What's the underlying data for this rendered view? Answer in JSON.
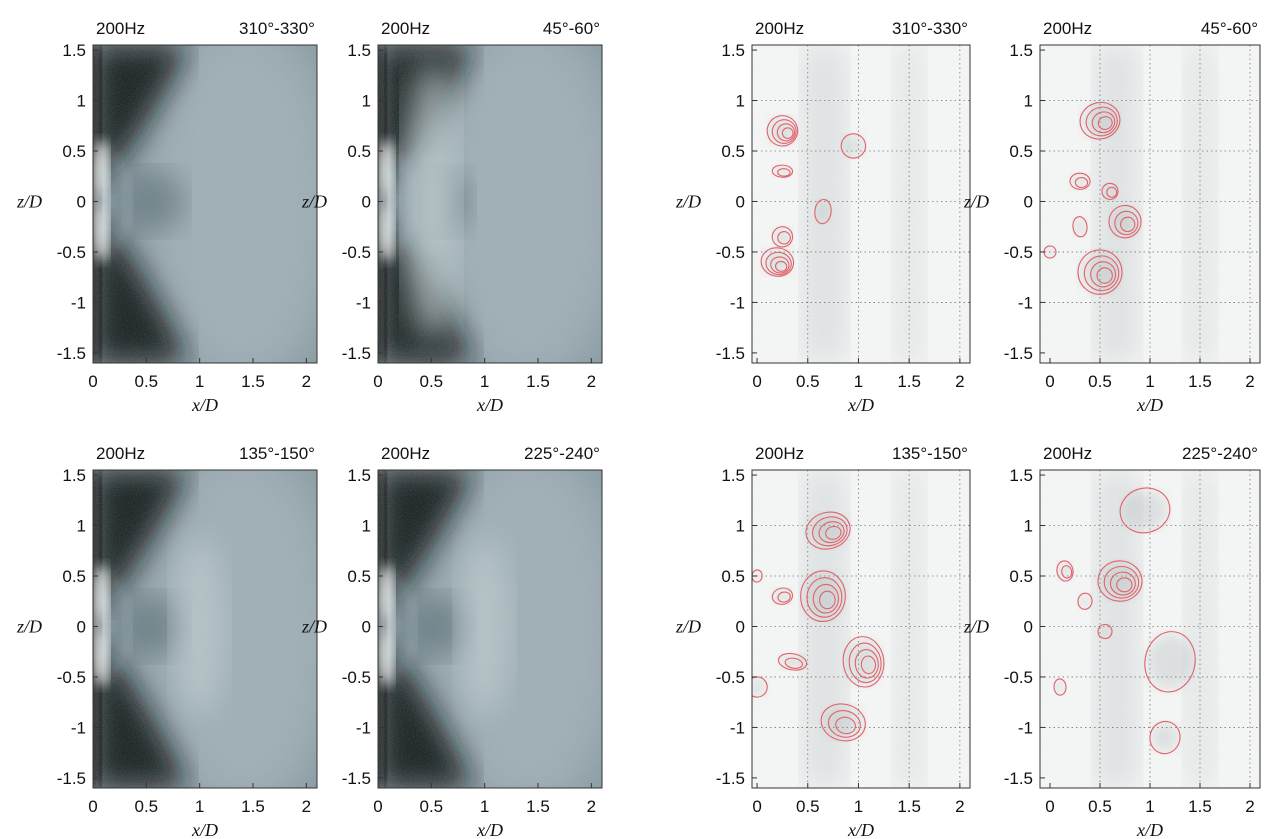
{
  "chart_data": [
    {
      "type": "heatmap",
      "style": "intensity",
      "freq": "200Hz",
      "phase": "310°-330°",
      "xlabel": "x/D",
      "ylabel": "z/D",
      "xlim": [
        0,
        2.1
      ],
      "ylim": [
        -1.6,
        1.55
      ],
      "xticks": [
        "0",
        "0.5",
        "1",
        "1.5",
        "2"
      ],
      "yticks": [
        "1.5",
        "1",
        "0.5",
        "0",
        "-0.5",
        "-1",
        "-1.5"
      ],
      "grid": false,
      "bright_features": [
        {
          "x": 0.08,
          "z": 0.3,
          "label": ""
        },
        {
          "x": 0.08,
          "z": -0.28,
          "label": ""
        }
      ]
    },
    {
      "type": "heatmap",
      "style": "intensity",
      "freq": "200Hz",
      "phase": "45°-60°",
      "xlabel": "x/D",
      "ylabel": "z/D",
      "xlim": [
        0,
        2.1
      ],
      "ylim": [
        -1.6,
        1.55
      ],
      "xticks": [
        "0",
        "0.5",
        "1",
        "1.5",
        "2"
      ],
      "yticks": [
        "1.5",
        "1",
        "0.5",
        "0",
        "-0.5",
        "-1",
        "-1.5"
      ],
      "grid": false,
      "bright_features": [
        {
          "x": 0.08,
          "z": 0.3,
          "label": ""
        },
        {
          "x": 0.08,
          "z": -0.28,
          "label": ""
        },
        {
          "x": 0.5,
          "z": 0.5,
          "label": ""
        },
        {
          "x": 0.5,
          "z": -0.5,
          "label": ""
        }
      ]
    },
    {
      "type": "heatmap",
      "style": "contour",
      "freq": "200Hz",
      "phase": "310°-330°",
      "xlabel": "x/D",
      "ylabel": "z/D",
      "xlim": [
        -0.05,
        2.1
      ],
      "ylim": [
        -1.6,
        1.55
      ],
      "xticks": [
        "0",
        "0.5",
        "1",
        "1.5",
        "2"
      ],
      "yticks": [
        "1.5",
        "1",
        "0.5",
        "0",
        "-0.5",
        "-1",
        "-1.5"
      ],
      "grid": true,
      "contours": [
        {
          "x": 0.25,
          "z": 0.7,
          "rx": 0.15,
          "rz": 0.15,
          "levels": 4
        },
        {
          "x": 0.25,
          "z": 0.3,
          "rx": 0.1,
          "rz": 0.06,
          "levels": 2
        },
        {
          "x": 0.95,
          "z": 0.55,
          "rx": 0.12,
          "rz": 0.12,
          "levels": 1
        },
        {
          "x": 0.65,
          "z": -0.1,
          "rx": 0.08,
          "rz": 0.12,
          "levels": 1
        },
        {
          "x": 0.25,
          "z": -0.35,
          "rx": 0.1,
          "rz": 0.1,
          "levels": 2
        },
        {
          "x": 0.2,
          "z": -0.6,
          "rx": 0.16,
          "rz": 0.14,
          "levels": 4
        }
      ]
    },
    {
      "type": "heatmap",
      "style": "contour",
      "freq": "200Hz",
      "phase": "45°-60°",
      "xlabel": "x/D",
      "ylabel": "z/D",
      "xlim": [
        -0.1,
        2.1
      ],
      "ylim": [
        -1.6,
        1.55
      ],
      "xticks": [
        "0",
        "0.5",
        "1",
        "1.5",
        "2"
      ],
      "yticks": [
        "1.5",
        "1",
        "0.5",
        "0",
        "-0.5",
        "-1",
        "-1.5"
      ],
      "grid": true,
      "contours": [
        {
          "x": 0.5,
          "z": 0.8,
          "rx": 0.2,
          "rz": 0.18,
          "levels": 4
        },
        {
          "x": 0.3,
          "z": 0.2,
          "rx": 0.1,
          "rz": 0.08,
          "levels": 2
        },
        {
          "x": 0.6,
          "z": 0.1,
          "rx": 0.08,
          "rz": 0.08,
          "levels": 2
        },
        {
          "x": 0.75,
          "z": -0.2,
          "rx": 0.16,
          "rz": 0.16,
          "levels": 3
        },
        {
          "x": 0.3,
          "z": -0.25,
          "rx": 0.07,
          "rz": 0.1,
          "levels": 1
        },
        {
          "x": 0.0,
          "z": -0.5,
          "rx": 0.06,
          "rz": 0.06,
          "levels": 1
        },
        {
          "x": 0.5,
          "z": -0.7,
          "rx": 0.22,
          "rz": 0.22,
          "levels": 4
        }
      ]
    },
    {
      "type": "heatmap",
      "style": "intensity",
      "freq": "200Hz",
      "phase": "135°-150°",
      "xlabel": "x/D",
      "ylabel": "z/D",
      "xlim": [
        0,
        2.1
      ],
      "ylim": [
        -1.6,
        1.55
      ],
      "xticks": [
        "0",
        "0.5",
        "1",
        "1.5",
        "2"
      ],
      "yticks": [
        "1.5",
        "1",
        "0.5",
        "0",
        "-0.5",
        "-1",
        "-1.5"
      ],
      "grid": false,
      "bright_features": [
        {
          "x": 0.08,
          "z": 0.3,
          "label": ""
        },
        {
          "x": 0.08,
          "z": -0.28,
          "label": ""
        },
        {
          "x": 1.0,
          "z": 0.0,
          "label": ""
        }
      ]
    },
    {
      "type": "heatmap",
      "style": "intensity",
      "freq": "200Hz",
      "phase": "225°-240°",
      "xlabel": "x/D",
      "ylabel": "z/D",
      "xlim": [
        0,
        2.1
      ],
      "ylim": [
        -1.6,
        1.55
      ],
      "xticks": [
        "0",
        "0.5",
        "1",
        "1.5",
        "2"
      ],
      "yticks": [
        "1.5",
        "1",
        "0.5",
        "0",
        "-0.5",
        "-1",
        "-1.5"
      ],
      "grid": false,
      "bright_features": [
        {
          "x": 0.08,
          "z": 0.3,
          "label": ""
        },
        {
          "x": 0.08,
          "z": -0.28,
          "label": ""
        },
        {
          "x": 1.0,
          "z": 0.0,
          "label": ""
        }
      ]
    },
    {
      "type": "heatmap",
      "style": "contour",
      "freq": "200Hz",
      "phase": "135°-150°",
      "xlabel": "x/D",
      "ylabel": "z/D",
      "xlim": [
        -0.05,
        2.1
      ],
      "ylim": [
        -1.6,
        1.55
      ],
      "xticks": [
        "0",
        "0.5",
        "1",
        "1.5",
        "2"
      ],
      "yticks": [
        "1.5",
        "1",
        "0.5",
        "0",
        "-0.5",
        "-1",
        "-1.5"
      ],
      "grid": true,
      "contours": [
        {
          "x": 0.7,
          "z": 0.95,
          "rx": 0.22,
          "rz": 0.18,
          "levels": 4
        },
        {
          "x": 0.65,
          "z": 0.3,
          "rx": 0.22,
          "rz": 0.25,
          "levels": 4
        },
        {
          "x": 0.25,
          "z": 0.3,
          "rx": 0.1,
          "rz": 0.08,
          "levels": 2
        },
        {
          "x": 0.0,
          "z": 0.5,
          "rx": 0.05,
          "rz": 0.06,
          "levels": 1
        },
        {
          "x": 1.05,
          "z": -0.35,
          "rx": 0.2,
          "rz": 0.25,
          "levels": 4
        },
        {
          "x": 0.35,
          "z": -0.35,
          "rx": 0.14,
          "rz": 0.08,
          "levels": 2
        },
        {
          "x": 0.0,
          "z": -0.6,
          "rx": 0.1,
          "rz": 0.1,
          "levels": 1
        },
        {
          "x": 0.85,
          "z": -0.95,
          "rx": 0.22,
          "rz": 0.18,
          "levels": 3
        }
      ]
    },
    {
      "type": "heatmap",
      "style": "contour",
      "freq": "200Hz",
      "phase": "225°-240°",
      "xlabel": "x/D",
      "ylabel": "z/D",
      "xlim": [
        -0.1,
        2.1
      ],
      "ylim": [
        -1.6,
        1.55
      ],
      "xticks": [
        "0",
        "0.5",
        "1",
        "1.5",
        "2"
      ],
      "yticks": [
        "1.5",
        "1",
        "0.5",
        "0",
        "-0.5",
        "-1",
        "-1.5"
      ],
      "grid": true,
      "contours": [
        {
          "x": 0.95,
          "z": 1.15,
          "rx": 0.25,
          "rz": 0.22,
          "levels": 1
        },
        {
          "x": 0.7,
          "z": 0.45,
          "rx": 0.22,
          "rz": 0.2,
          "levels": 4
        },
        {
          "x": 0.15,
          "z": 0.55,
          "rx": 0.08,
          "rz": 0.1,
          "levels": 2
        },
        {
          "x": 0.35,
          "z": 0.25,
          "rx": 0.07,
          "rz": 0.08,
          "levels": 1
        },
        {
          "x": 0.55,
          "z": -0.05,
          "rx": 0.07,
          "rz": 0.07,
          "levels": 1
        },
        {
          "x": 1.2,
          "z": -0.35,
          "rx": 0.25,
          "rz": 0.3,
          "levels": 1
        },
        {
          "x": 0.1,
          "z": -0.6,
          "rx": 0.06,
          "rz": 0.08,
          "levels": 1
        },
        {
          "x": 1.15,
          "z": -1.1,
          "rx": 0.15,
          "rz": 0.16,
          "levels": 1
        }
      ]
    }
  ]
}
